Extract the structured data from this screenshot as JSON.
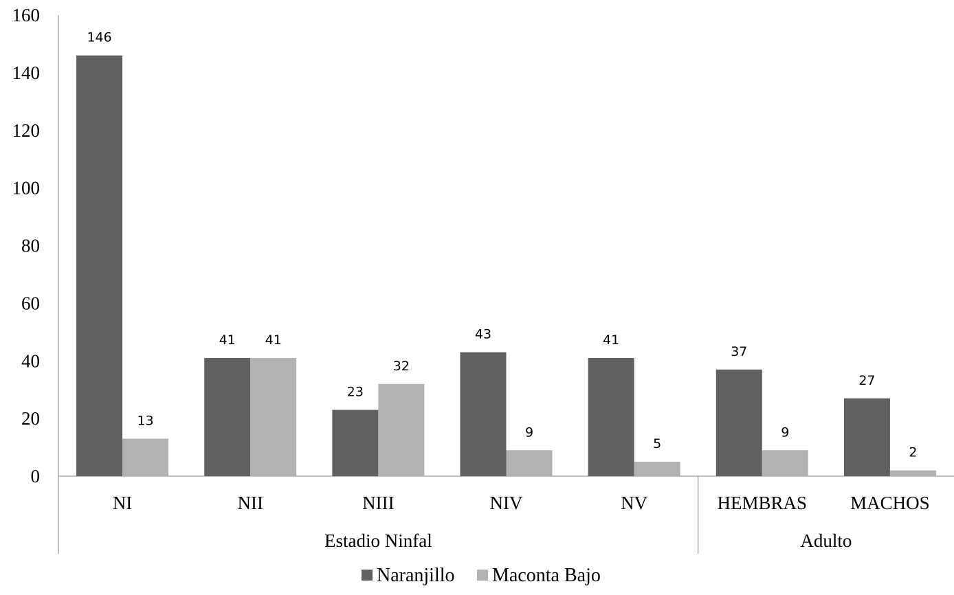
{
  "chart_data": {
    "type": "bar",
    "categories": [
      "NI",
      "NII",
      "NIII",
      "NIV",
      "NV",
      "HEMBRAS",
      "MACHOS"
    ],
    "category_groups": [
      {
        "label": "Estadio Ninfal",
        "categories": [
          "NI",
          "NII",
          "NIII",
          "NIV",
          "NV"
        ]
      },
      {
        "label": "Adulto",
        "categories": [
          "HEMBRAS",
          "MACHOS"
        ]
      }
    ],
    "series": [
      {
        "name": "Naranjillo",
        "values": [
          146,
          41,
          23,
          43,
          41,
          37,
          27
        ],
        "color": "#606060"
      },
      {
        "name": "Maconta Bajo",
        "values": [
          13,
          41,
          32,
          9,
          5,
          9,
          2
        ],
        "color": "#b2b2b2"
      }
    ],
    "yticks": [
      "0",
      "20",
      "40",
      "60",
      "80",
      "100",
      "120",
      "140",
      "160"
    ],
    "ylim": [
      0,
      160
    ],
    "title": "",
    "xlabel": "",
    "ylabel": "",
    "grid": false,
    "legend_position": "bottom",
    "data_labels": true
  }
}
